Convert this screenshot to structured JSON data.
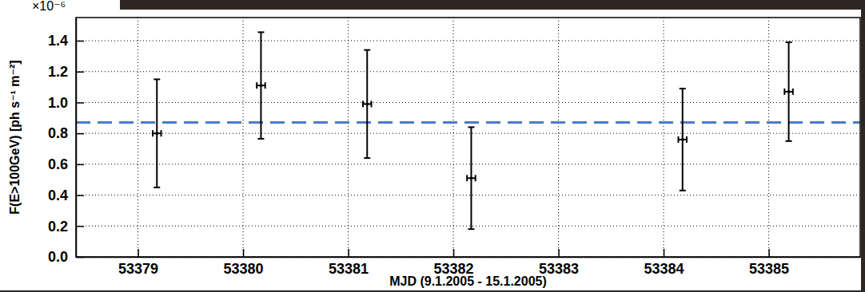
{
  "chart_data": {
    "type": "scatter",
    "marker": "point",
    "y_multiplier": "×10⁻⁶",
    "x_label": "MJD (9.1.2005 - 15.1.2005)",
    "y_label": "F(E>100GeV) [ph s⁻¹ m⁻²]",
    "xlim": [
      53378.41,
      53385.87
    ],
    "xticks": [
      53379,
      53380,
      53381,
      53382,
      53383,
      53384,
      53385
    ],
    "ylim": [
      0,
      1.55
    ],
    "yticks": [
      {
        "value": 0,
        "label": "0.0"
      },
      0.2,
      0.4,
      0.6,
      0.8,
      {
        "value": 1,
        "label": "1.0"
      },
      1.2,
      1.4
    ],
    "grid": true,
    "series": [
      {
        "color": "#000000",
        "x": [
          53379.18,
          53380.17,
          53381.18,
          53382.17,
          53384.18,
          53385.19
        ],
        "values": [
          0.8,
          1.11,
          0.99,
          0.51,
          0.76,
          1.07
        ],
        "yerr": [
          0.35,
          0.345,
          0.35,
          0.33,
          0.33,
          0.32
        ],
        "xerr": [
          0.04,
          0.04,
          0.04,
          0.04,
          0.04,
          0.04
        ]
      }
    ],
    "reference_line": {
      "value": 0.87,
      "color": "#4a7cc4",
      "line_style": "dashed"
    }
  }
}
